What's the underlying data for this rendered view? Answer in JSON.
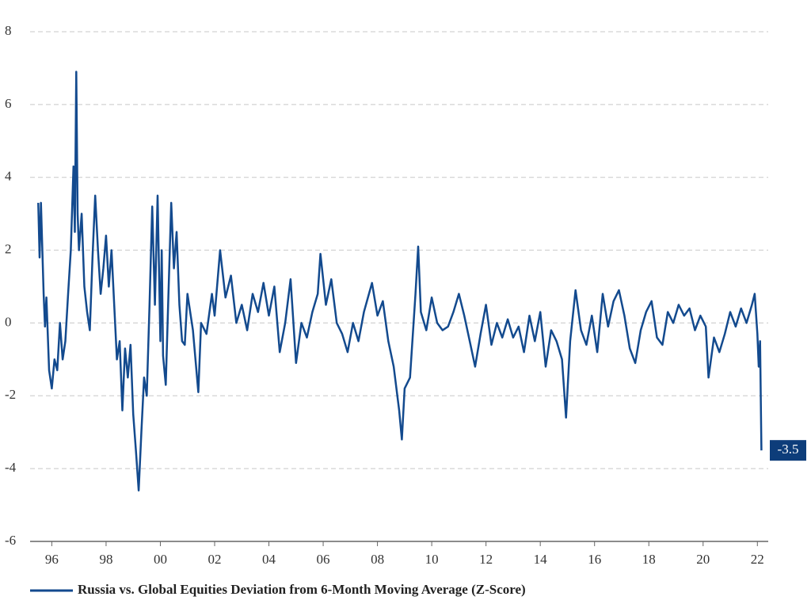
{
  "chart_data": {
    "type": "line",
    "x": [
      1995.5,
      1995.55,
      1995.6,
      1995.7,
      1995.75,
      1995.8,
      1995.9,
      1996.0,
      1996.1,
      1996.2,
      1996.3,
      1996.4,
      1996.5,
      1996.6,
      1996.7,
      1996.8,
      1996.85,
      1996.9,
      1996.95,
      1997.0,
      1997.1,
      1997.2,
      1997.3,
      1997.4,
      1997.5,
      1997.6,
      1997.7,
      1997.8,
      1997.9,
      1998.0,
      1998.1,
      1998.2,
      1998.3,
      1998.4,
      1998.5,
      1998.6,
      1998.7,
      1998.8,
      1998.9,
      1999.0,
      1999.1,
      1999.2,
      1999.3,
      1999.4,
      1999.5,
      1999.6,
      1999.7,
      1999.8,
      1999.9,
      2000.0,
      2000.05,
      2000.1,
      2000.2,
      2000.3,
      2000.4,
      2000.5,
      2000.6,
      2000.7,
      2000.8,
      2000.9,
      2001.0,
      2001.2,
      2001.4,
      2001.5,
      2001.7,
      2001.9,
      2002.0,
      2002.2,
      2002.4,
      2002.6,
      2002.8,
      2003.0,
      2003.2,
      2003.4,
      2003.6,
      2003.8,
      2004.0,
      2004.2,
      2004.4,
      2004.6,
      2004.8,
      2005.0,
      2005.2,
      2005.4,
      2005.6,
      2005.8,
      2005.9,
      2006.1,
      2006.3,
      2006.5,
      2006.7,
      2006.9,
      2007.1,
      2007.3,
      2007.5,
      2007.8,
      2008.0,
      2008.2,
      2008.4,
      2008.6,
      2008.8,
      2008.9,
      2009.0,
      2009.2,
      2009.4,
      2009.5,
      2009.6,
      2009.8,
      2010.0,
      2010.2,
      2010.4,
      2010.6,
      2010.8,
      2011.0,
      2011.2,
      2011.4,
      2011.6,
      2011.8,
      2012.0,
      2012.2,
      2012.4,
      2012.6,
      2012.8,
      2013.0,
      2013.2,
      2013.4,
      2013.6,
      2013.8,
      2014.0,
      2014.2,
      2014.4,
      2014.6,
      2014.8,
      2014.95,
      2015.1,
      2015.3,
      2015.5,
      2015.7,
      2015.9,
      2016.1,
      2016.3,
      2016.5,
      2016.7,
      2016.9,
      2017.1,
      2017.3,
      2017.5,
      2017.7,
      2017.9,
      2018.1,
      2018.3,
      2018.5,
      2018.7,
      2018.9,
      2019.1,
      2019.3,
      2019.5,
      2019.7,
      2019.9,
      2020.1,
      2020.2,
      2020.4,
      2020.6,
      2020.8,
      2021.0,
      2021.2,
      2021.4,
      2021.6,
      2021.8,
      2021.9,
      2022.0,
      2022.05,
      2022.1,
      2022.15
    ],
    "series": [
      {
        "name": "Russia vs. Global Equities Deviation from 6-Month Moving Average (Z-Score)",
        "color": "#134a8e",
        "values": [
          3.3,
          1.8,
          3.3,
          0.8,
          -0.1,
          0.7,
          -1.3,
          -1.8,
          -1.0,
          -1.3,
          0.0,
          -1.0,
          -0.5,
          0.8,
          2.0,
          4.3,
          2.5,
          6.9,
          3.0,
          2.0,
          3.0,
          1.0,
          0.3,
          -0.2,
          1.8,
          3.5,
          2.0,
          0.8,
          1.5,
          2.4,
          1.0,
          2.0,
          0.5,
          -1.0,
          -0.5,
          -2.4,
          -0.7,
          -1.5,
          -0.6,
          -2.5,
          -3.5,
          -4.6,
          -3.0,
          -1.5,
          -2.0,
          0.5,
          3.2,
          0.5,
          3.5,
          -0.5,
          2.0,
          -0.9,
          -1.7,
          0.8,
          3.3,
          1.5,
          2.5,
          0.5,
          -0.5,
          -0.6,
          0.8,
          -0.2,
          -1.9,
          0.0,
          -0.3,
          0.8,
          0.2,
          2.0,
          0.7,
          1.3,
          0.0,
          0.5,
          -0.2,
          0.8,
          0.3,
          1.1,
          0.2,
          1.0,
          -0.8,
          0.0,
          1.2,
          -1.1,
          0.0,
          -0.4,
          0.3,
          0.8,
          1.9,
          0.5,
          1.2,
          0.0,
          -0.3,
          -0.8,
          0.0,
          -0.5,
          0.3,
          1.1,
          0.2,
          0.6,
          -0.5,
          -1.2,
          -2.4,
          -3.2,
          -1.8,
          -1.5,
          0.8,
          2.1,
          0.3,
          -0.2,
          0.7,
          0.0,
          -0.2,
          -0.1,
          0.3,
          0.8,
          0.2,
          -0.5,
          -1.2,
          -0.3,
          0.5,
          -0.6,
          0.0,
          -0.4,
          0.1,
          -0.4,
          -0.1,
          -0.8,
          0.2,
          -0.5,
          0.3,
          -1.2,
          -0.2,
          -0.5,
          -1.0,
          -2.6,
          -0.5,
          0.9,
          -0.2,
          -0.6,
          0.2,
          -0.8,
          0.8,
          -0.1,
          0.6,
          0.9,
          0.2,
          -0.7,
          -1.1,
          -0.2,
          0.3,
          0.6,
          -0.4,
          -0.6,
          0.3,
          0.0,
          0.5,
          0.2,
          0.4,
          -0.2,
          0.2,
          -0.1,
          -1.5,
          -0.4,
          -0.8,
          -0.3,
          0.3,
          -0.1,
          0.4,
          0.0,
          0.5,
          0.8,
          -0.3,
          -1.2,
          -0.5,
          -3.5
        ],
        "last_label": "-3.5"
      }
    ],
    "xlim": [
      1995.2,
      2022.4
    ],
    "xticks": [
      {
        "value": 1996,
        "label": "96"
      },
      {
        "value": 1998,
        "label": "98"
      },
      {
        "value": 2000,
        "label": "00"
      },
      {
        "value": 2002,
        "label": "02"
      },
      {
        "value": 2004,
        "label": "04"
      },
      {
        "value": 2006,
        "label": "06"
      },
      {
        "value": 2008,
        "label": "08"
      },
      {
        "value": 2010,
        "label": "10"
      },
      {
        "value": 2012,
        "label": "12"
      },
      {
        "value": 2014,
        "label": "14"
      },
      {
        "value": 2016,
        "label": "16"
      },
      {
        "value": 2018,
        "label": "18"
      },
      {
        "value": 2020,
        "label": "20"
      },
      {
        "value": 2022,
        "label": "22"
      }
    ],
    "ylim": [
      -6,
      8
    ],
    "yticks": [
      -6,
      -4,
      -2,
      0,
      2,
      4,
      6,
      8
    ],
    "grid": true
  }
}
